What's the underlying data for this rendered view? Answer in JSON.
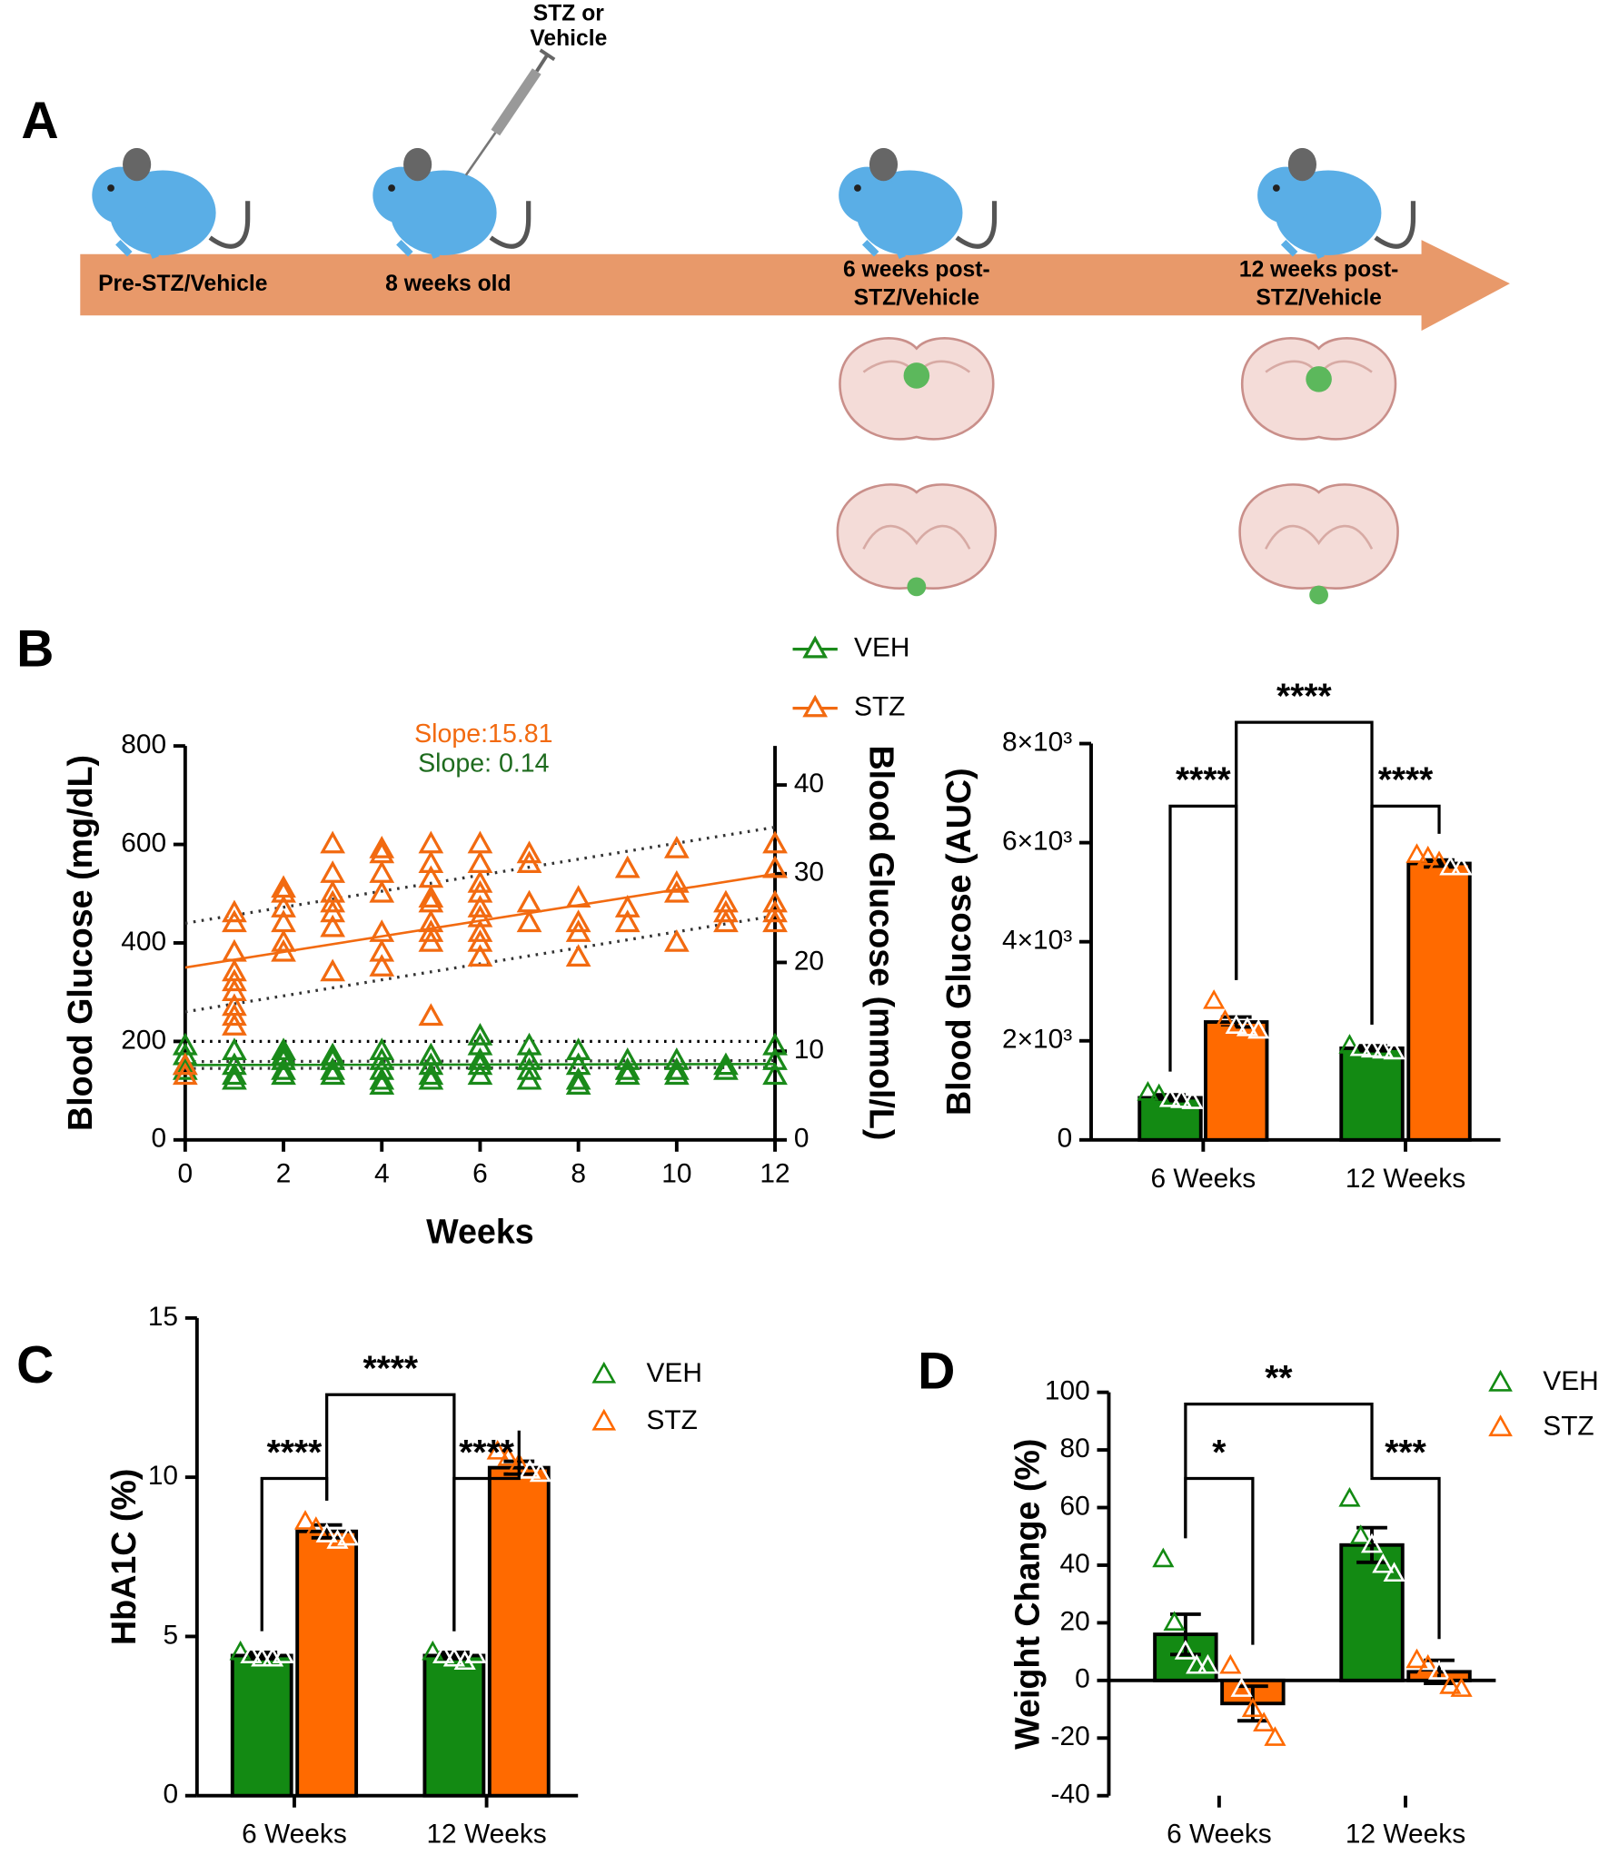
{
  "panels": [
    "A",
    "B",
    "C",
    "D"
  ],
  "diagram": {
    "labels": [
      "STZ or",
      "Vehicle",
      "Pre-STZ/Vehicle",
      "8 weeks old",
      "6 weeks post-",
      "STZ/Vehicle",
      "12 weeks post-",
      "STZ/Vehicle"
    ]
  },
  "chart_data": [
    {
      "type": "scatter",
      "xlabel": "Weeks",
      "ylabel": "Blood Glucose (mg/dL)",
      "y2label": "Blood Glucose (mmol/L)",
      "xlim": [
        0,
        12
      ],
      "xticks": [
        0,
        2,
        4,
        6,
        8,
        10,
        12
      ],
      "ylim": [
        0,
        800
      ],
      "yticks": [
        0,
        200,
        400,
        600,
        800
      ],
      "y2lim": [
        0,
        44.4
      ],
      "y2ticks": [
        0,
        10,
        20,
        30,
        40
      ],
      "annotations": [
        {
          "text": "Slope:15.81",
          "color": "#f26a10"
        },
        {
          "text": "Slope: 0.14",
          "color": "#1e6b1e"
        }
      ],
      "series": [
        {
          "name": "VEH",
          "color": "#1a8a1a",
          "x": [
            0,
            0,
            0,
            0,
            1,
            1,
            1,
            1,
            2,
            2,
            2,
            2,
            2,
            3,
            3,
            3,
            3,
            4,
            4,
            4,
            4,
            4,
            5,
            5,
            5,
            5,
            6,
            6,
            6,
            6,
            6,
            7,
            7,
            7,
            7,
            8,
            8,
            8,
            8,
            9,
            9,
            9,
            10,
            10,
            10,
            11,
            11,
            12,
            12,
            12
          ],
          "values": [
            190,
            170,
            150,
            140,
            180,
            150,
            130,
            120,
            180,
            170,
            160,
            140,
            130,
            170,
            160,
            140,
            130,
            180,
            160,
            140,
            120,
            110,
            170,
            150,
            130,
            120,
            210,
            190,
            160,
            150,
            130,
            190,
            160,
            140,
            120,
            180,
            150,
            120,
            110,
            160,
            140,
            130,
            160,
            140,
            130,
            150,
            140,
            190,
            160,
            130
          ]
        },
        {
          "name": "STZ",
          "color": "#f26a10",
          "x": [
            0,
            0,
            1,
            1,
            1,
            1,
            1,
            1,
            1,
            1,
            1,
            2,
            2,
            2,
            2,
            2,
            2,
            3,
            3,
            3,
            3,
            3,
            3,
            3,
            4,
            4,
            4,
            4,
            4,
            4,
            4,
            5,
            5,
            5,
            5,
            5,
            5,
            5,
            5,
            5,
            6,
            6,
            6,
            6,
            6,
            6,
            6,
            6,
            6,
            7,
            7,
            7,
            7,
            8,
            8,
            8,
            8,
            9,
            9,
            9,
            10,
            10,
            10,
            10,
            11,
            11,
            11,
            12,
            12,
            12,
            12,
            12
          ],
          "values": [
            130,
            150,
            460,
            440,
            380,
            340,
            320,
            300,
            270,
            250,
            230,
            510,
            500,
            470,
            440,
            400,
            380,
            600,
            540,
            500,
            480,
            460,
            430,
            340,
            590,
            580,
            540,
            500,
            420,
            380,
            350,
            600,
            560,
            530,
            490,
            480,
            440,
            420,
            400,
            250,
            600,
            560,
            520,
            500,
            470,
            450,
            420,
            400,
            370,
            580,
            560,
            480,
            440,
            490,
            440,
            420,
            370,
            550,
            470,
            440,
            590,
            520,
            500,
            400,
            480,
            460,
            440,
            600,
            550,
            480,
            460,
            440
          ]
        }
      ],
      "lines": [
        {
          "color": "#f26a10",
          "dash": "solid",
          "x": [
            0,
            12
          ],
          "values": [
            350,
            540
          ]
        },
        {
          "color": "#333333",
          "dash": "dotted",
          "x": [
            0,
            12
          ],
          "values": [
            440,
            635
          ]
        },
        {
          "color": "#333333",
          "dash": "dotted",
          "x": [
            0,
            12
          ],
          "values": [
            260,
            455
          ]
        },
        {
          "color": "#1a8a1a",
          "dash": "solid",
          "x": [
            0,
            12
          ],
          "values": [
            152,
            154
          ]
        },
        {
          "color": "#333333",
          "dash": "dotted",
          "x": [
            0,
            12
          ],
          "values": [
            145,
            147
          ]
        },
        {
          "color": "#333333",
          "dash": "dotted",
          "x": [
            0,
            12
          ],
          "values": [
            159,
            161
          ]
        },
        {
          "color": "#000000",
          "dash": "dotted",
          "x": [
            0,
            12
          ],
          "values": [
            200,
            200
          ]
        }
      ]
    },
    {
      "type": "bar",
      "ylabel": "Blood Glucose (AUC)",
      "categories": [
        "6 Weeks",
        "12 Weeks"
      ],
      "ylim": [
        0,
        8000
      ],
      "yticks": [
        0,
        {
          "value": 2000,
          "label": "2×10³"
        },
        {
          "value": 4000,
          "label": "4×10³"
        },
        {
          "value": 6000,
          "label": "6×10³"
        },
        {
          "value": 8000,
          "label": "8×10³"
        }
      ],
      "annotations": [
        "****",
        "****",
        "****"
      ],
      "series": [
        {
          "color": "#138a13",
          "values": [
            850,
            1850
          ],
          "errors": [
            60,
            50
          ],
          "points": [
            [
              950,
              900,
              820,
              800,
              780
            ],
            [
              1900,
              1850,
              1820,
              1800,
              1780
            ]
          ]
        },
        {
          "color": "#ff6a00",
          "values": [
            2380,
            5580
          ],
          "errors": [
            100,
            70
          ],
          "points": [
            [
              2800,
              2400,
              2300,
              2250,
              2200
            ],
            [
              5750,
              5700,
              5600,
              5500,
              5500
            ]
          ]
        }
      ]
    },
    {
      "type": "bar",
      "ylabel": "HbA1C (%)",
      "categories": [
        "6 Weeks",
        "12 Weeks"
      ],
      "ylim": [
        0,
        15
      ],
      "yticks": [
        0,
        5,
        10,
        15
      ],
      "annotations": [
        "****",
        "****",
        "****"
      ],
      "series": [
        {
          "name": "VEH",
          "color": "#138a13",
          "values": [
            4.4,
            4.4
          ],
          "errors": [
            0.1,
            0.1
          ],
          "points": [
            [
              4.5,
              4.4,
              4.3,
              4.3,
              4.4
            ],
            [
              4.5,
              4.4,
              4.3,
              4.2,
              4.4
            ]
          ]
        },
        {
          "name": "STZ",
          "color": "#ff6a00",
          "values": [
            8.3,
            10.3
          ],
          "errors": [
            0.2,
            0.2
          ],
          "points": [
            [
              8.6,
              8.4,
              8.2,
              8.0,
              8.1
            ],
            [
              10.8,
              10.6,
              10.4,
              10.2,
              10.1
            ]
          ]
        }
      ]
    },
    {
      "type": "bar",
      "ylabel": "Weight Change (%)",
      "categories": [
        "6 Weeks",
        "12 Weeks"
      ],
      "ylim": [
        -40,
        100
      ],
      "yticks": [
        -40,
        -20,
        0,
        20,
        40,
        60,
        80,
        100
      ],
      "annotations": [
        "*",
        "***",
        "**"
      ],
      "series": [
        {
          "name": "VEH",
          "color": "#138a13",
          "values": [
            16,
            47
          ],
          "errors": [
            7,
            6
          ],
          "points": [
            [
              42,
              20,
              10,
              5,
              5
            ],
            [
              63,
              50,
              47,
              40,
              37
            ]
          ]
        },
        {
          "name": "STZ",
          "color": "#ff6a00",
          "values": [
            -8,
            3
          ],
          "errors": [
            6,
            4
          ],
          "points": [
            [
              5,
              -3,
              -10,
              -15,
              -20
            ],
            [
              7,
              5,
              3,
              -2,
              -3
            ]
          ]
        }
      ]
    }
  ]
}
